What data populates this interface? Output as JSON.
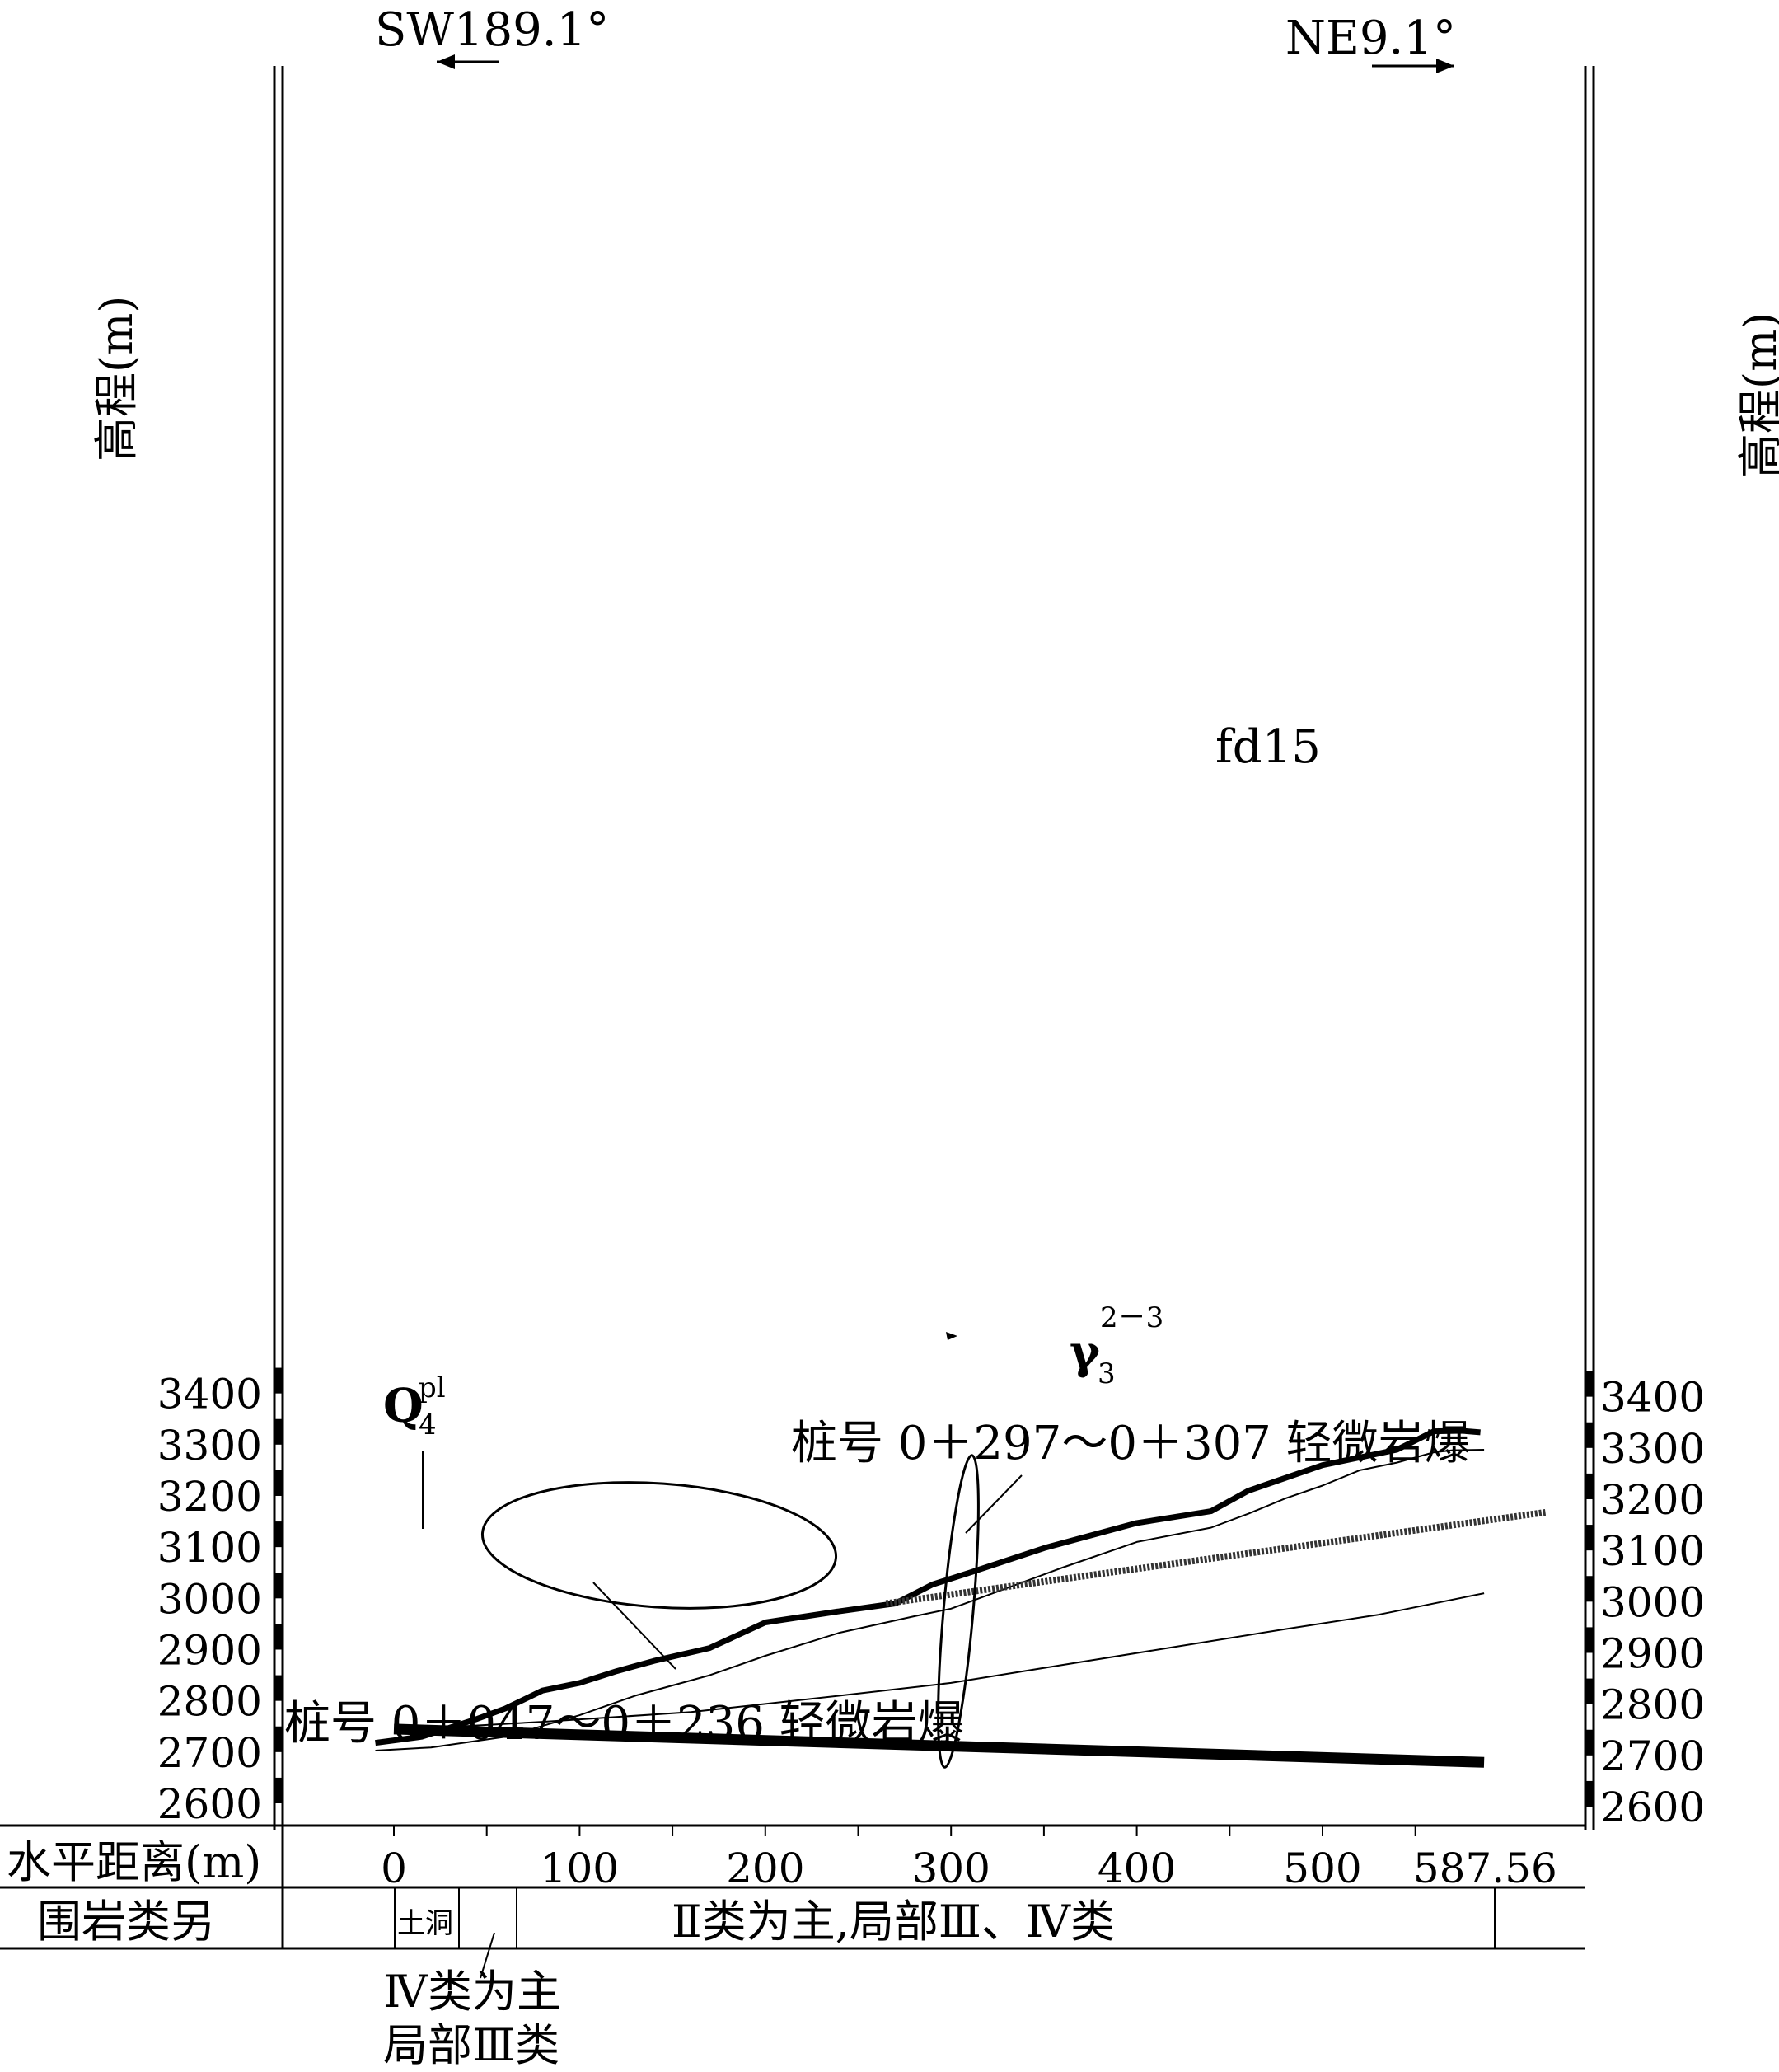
{
  "chart_data": {
    "type": "line",
    "direction_left": "SW189.1°",
    "direction_right": "NE9.1°",
    "ylabel_left": "高程(m)",
    "ylabel_right": "高程(m)",
    "y_ticks": [
      "3400",
      "3300",
      "3200",
      "3100",
      "3000",
      "2900",
      "2800",
      "2700",
      "2600"
    ],
    "ylim": [
      2600,
      3400
    ],
    "xlim": [
      0,
      587.56
    ],
    "x_row_label": "水平距离(m)",
    "x_ticks": [
      "0",
      "100",
      "200",
      "300",
      "400",
      "500",
      "587.56"
    ],
    "class_row_label": "围岩类另",
    "class_cell_short": "土洞",
    "class_cell_main": "Ⅱ类为主,局部Ⅲ、Ⅳ类",
    "class_note_line1": "Ⅳ类为主",
    "class_note_line2": "局部Ⅲ类",
    "annotation_1": "桩号 0＋297～0＋307 轻微岩爆",
    "annotation_2": "桩号 0＋047～0＋236 轻微岩爆",
    "fault_label": "fd15",
    "q_label_base": "Q",
    "q_label_sub": "4",
    "q_label_sup": "pl",
    "gamma_base": "γ",
    "gamma_sub": "3",
    "gamma_sup": "2－3",
    "series": [
      {
        "role": "ground-surface",
        "x": [
          -10,
          15,
          45,
          60,
          80,
          100,
          120,
          140,
          170,
          200,
          240,
          270,
          290,
          310,
          350,
          400,
          440,
          460,
          500,
          540,
          560,
          575,
          585
        ],
        "y": [
          2718,
          2730,
          2765,
          2785,
          2820,
          2835,
          2858,
          2878,
          2903,
          2953,
          2975,
          2990,
          3027,
          3050,
          3098,
          3147,
          3170,
          3210,
          3260,
          3290,
          3326,
          3327,
          3324
        ]
      },
      {
        "role": "contact-upper",
        "x": [
          -10,
          20,
          60,
          100,
          130,
          170,
          200,
          240,
          280,
          300,
          330,
          360,
          400,
          440,
          460,
          480,
          500,
          520,
          540,
          560,
          570,
          587
        ],
        "y": [
          2703,
          2709,
          2730,
          2772,
          2810,
          2850,
          2888,
          2933,
          2965,
          2980,
          3020,
          3060,
          3110,
          3138,
          3165,
          3195,
          3220,
          3250,
          3265,
          3285,
          3289,
          3290
        ]
      },
      {
        "role": "contact-lower",
        "x": [
          10,
          80,
          160,
          240,
          300,
          360,
          420,
          480,
          530,
          587
        ],
        "y": [
          2745,
          2759,
          2778,
          2810,
          2835,
          2870,
          2905,
          2940,
          2968,
          3010
        ]
      },
      {
        "role": "tunnel-axis",
        "x": [
          0,
          587
        ],
        "y": [
          2745,
          2680
        ]
      },
      {
        "role": "fault-fd15",
        "x": [
          265,
          620
        ],
        "y": [
          2990,
          3168
        ]
      }
    ]
  }
}
